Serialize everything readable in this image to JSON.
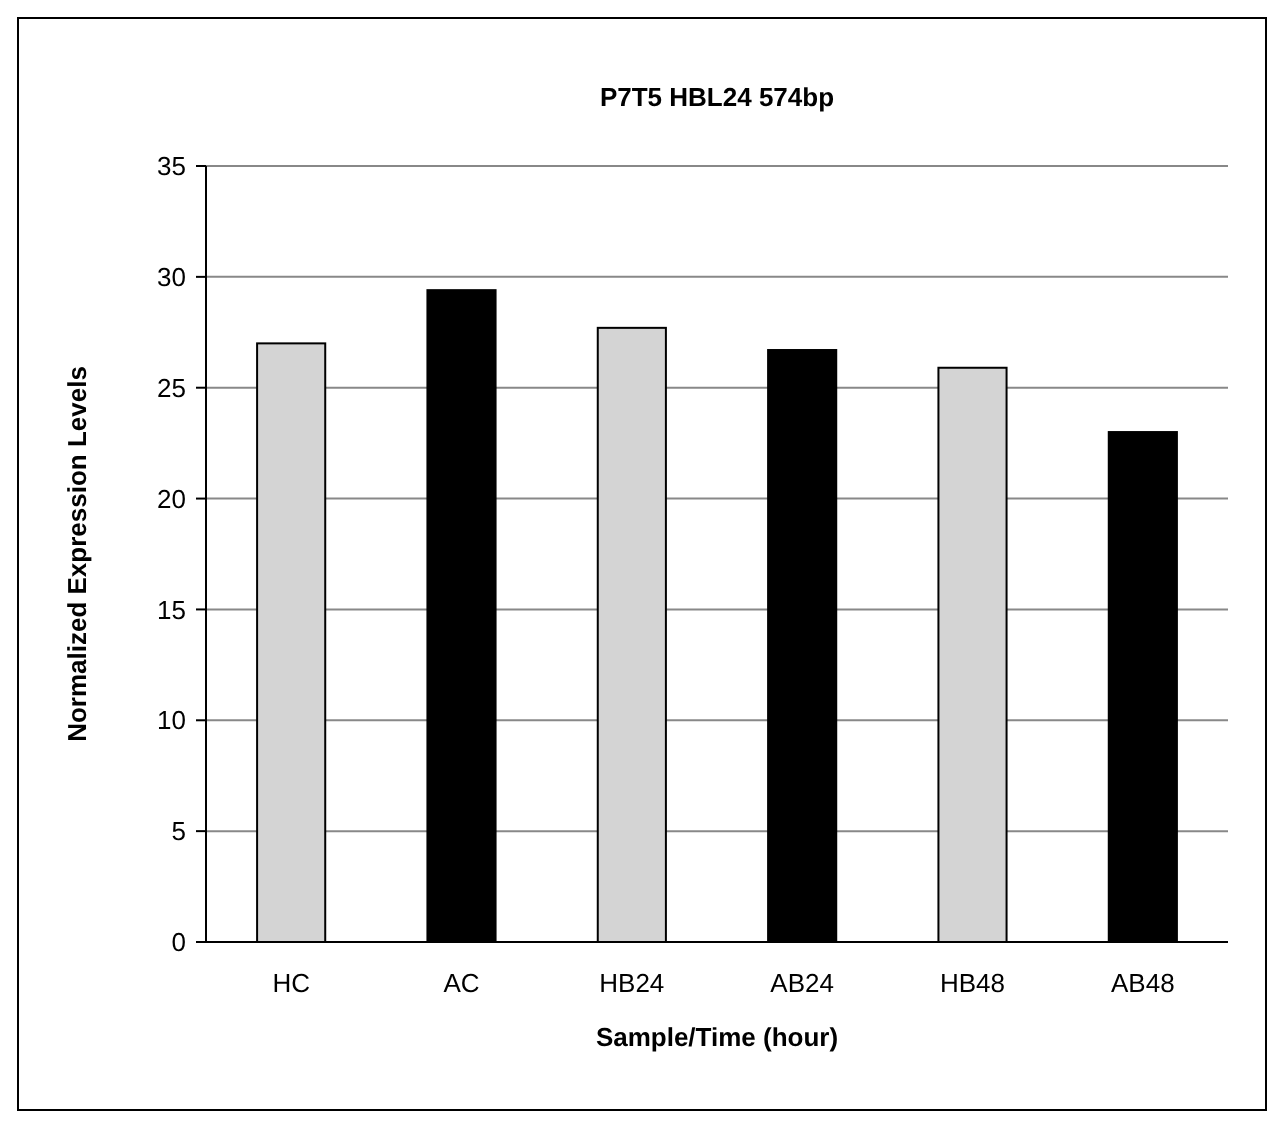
{
  "chart_data": {
    "type": "bar",
    "title": "P7T5 HBL24 574bp",
    "xlabel": "Sample/Time (hour)",
    "ylabel": "Normalized Expression Levels",
    "categories": [
      "HC",
      "AC",
      "HB24",
      "AB24",
      "HB48",
      "AB48"
    ],
    "values": [
      27,
      29.4,
      27.7,
      26.7,
      25.9,
      23.0
    ],
    "colors": [
      "#d4d4d4",
      "#000000",
      "#d4d4d4",
      "#000000",
      "#d4d4d4",
      "#000000"
    ],
    "ylim": [
      0,
      35
    ],
    "yticks": [
      0,
      5,
      10,
      15,
      20,
      25,
      30,
      35
    ],
    "grid": "y"
  }
}
